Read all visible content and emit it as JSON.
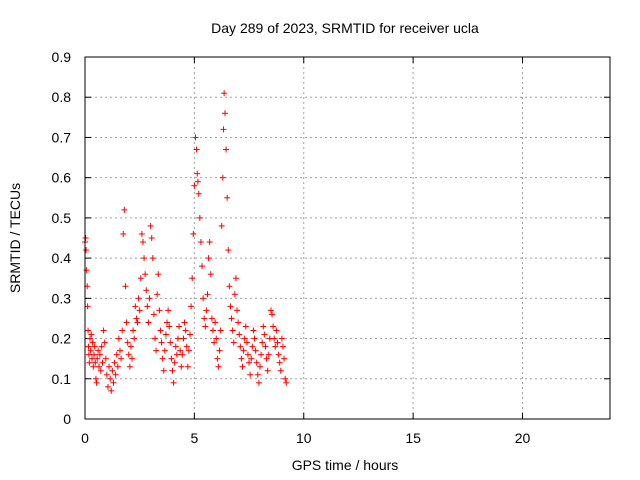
{
  "chart_data": {
    "type": "scatter",
    "title": "Day 289 of 2023, SRMTID for receiver ucla",
    "xlabel": "GPS time / hours",
    "ylabel": "SRMTID / TECUs",
    "xlim": [
      0,
      24
    ],
    "ylim": [
      0,
      0.9
    ],
    "xticks": [
      0,
      5,
      10,
      15,
      20
    ],
    "yticks": [
      0,
      0.1,
      0.2,
      0.3,
      0.4,
      0.5,
      0.6,
      0.7,
      0.8,
      0.9
    ],
    "xtick_labels": [
      "0",
      "5",
      "10",
      "15",
      "20"
    ],
    "ytick_labels": [
      "0",
      "0.1",
      "0.2",
      "0.3",
      "0.4",
      "0.5",
      "0.6",
      "0.7",
      "0.8",
      "0.9"
    ],
    "grid": true,
    "marker": "+",
    "color": "#ff0000",
    "series": [
      {
        "name": "SRMTID",
        "x": [
          0.0,
          0.03,
          0.05,
          0.07,
          0.1,
          0.12,
          0.14,
          0.16,
          0.18,
          0.2,
          0.23,
          0.26,
          0.29,
          0.32,
          0.35,
          0.38,
          0.41,
          0.44,
          0.47,
          0.5,
          0.53,
          0.56,
          0.6,
          0.64,
          0.68,
          0.72,
          0.76,
          0.8,
          0.85,
          0.9,
          0.95,
          1.0,
          1.05,
          1.1,
          1.15,
          1.2,
          1.25,
          1.3,
          1.35,
          1.4,
          1.45,
          1.5,
          1.55,
          1.6,
          1.65,
          1.7,
          1.75,
          1.8,
          1.85,
          1.9,
          1.95,
          2.0,
          2.05,
          2.1,
          2.15,
          2.2,
          2.25,
          2.3,
          2.35,
          2.4,
          2.45,
          2.5,
          2.55,
          2.6,
          2.65,
          2.7,
          2.75,
          2.8,
          2.85,
          2.9,
          2.95,
          3.0,
          3.05,
          3.1,
          3.15,
          3.2,
          3.25,
          3.3,
          3.35,
          3.4,
          3.45,
          3.5,
          3.55,
          3.6,
          3.65,
          3.7,
          3.75,
          3.8,
          3.85,
          3.9,
          3.95,
          4.0,
          4.05,
          4.1,
          4.15,
          4.2,
          4.25,
          4.3,
          4.35,
          4.4,
          4.45,
          4.5,
          4.55,
          4.6,
          4.65,
          4.7,
          4.75,
          4.8,
          4.85,
          4.9,
          4.95,
          5.0,
          5.05,
          5.1,
          5.13,
          5.16,
          5.2,
          5.25,
          5.3,
          5.35,
          5.4,
          5.45,
          5.5,
          5.55,
          5.6,
          5.65,
          5.7,
          5.75,
          5.8,
          5.85,
          5.9,
          5.95,
          6.0,
          6.05,
          6.1,
          6.15,
          6.2,
          6.25,
          6.3,
          6.33,
          6.36,
          6.4,
          6.45,
          6.5,
          6.55,
          6.6,
          6.65,
          6.7,
          6.75,
          6.8,
          6.85,
          6.9,
          6.95,
          7.0,
          7.05,
          7.1,
          7.15,
          7.2,
          7.25,
          7.3,
          7.35,
          7.4,
          7.45,
          7.5,
          7.55,
          7.6,
          7.65,
          7.7,
          7.75,
          7.8,
          7.85,
          7.9,
          7.95,
          8.0,
          8.05,
          8.1,
          8.15,
          8.2,
          8.25,
          8.3,
          8.35,
          8.4,
          8.45,
          8.5,
          8.55,
          8.6,
          8.65,
          8.7,
          8.75,
          8.8,
          8.85,
          8.9,
          8.95,
          9.0,
          9.05,
          9.1,
          9.15,
          9.2
        ],
        "y": [
          0.44,
          0.45,
          0.42,
          0.37,
          0.33,
          0.28,
          0.22,
          0.18,
          0.16,
          0.14,
          0.2,
          0.17,
          0.21,
          0.15,
          0.19,
          0.13,
          0.16,
          0.18,
          0.14,
          0.1,
          0.09,
          0.15,
          0.17,
          0.13,
          0.16,
          0.12,
          0.18,
          0.14,
          0.22,
          0.19,
          0.15,
          0.11,
          0.08,
          0.13,
          0.1,
          0.07,
          0.12,
          0.09,
          0.14,
          0.11,
          0.16,
          0.13,
          0.2,
          0.17,
          0.15,
          0.22,
          0.46,
          0.52,
          0.33,
          0.24,
          0.19,
          0.16,
          0.13,
          0.18,
          0.15,
          0.22,
          0.2,
          0.28,
          0.25,
          0.24,
          0.3,
          0.27,
          0.35,
          0.46,
          0.44,
          0.4,
          0.36,
          0.32,
          0.28,
          0.24,
          0.3,
          0.48,
          0.45,
          0.4,
          0.26,
          0.2,
          0.17,
          0.31,
          0.36,
          0.27,
          0.22,
          0.19,
          0.15,
          0.12,
          0.17,
          0.21,
          0.24,
          0.27,
          0.23,
          0.19,
          0.15,
          0.12,
          0.09,
          0.14,
          0.18,
          0.16,
          0.2,
          0.23,
          0.17,
          0.13,
          0.16,
          0.2,
          0.24,
          0.22,
          0.18,
          0.13,
          0.17,
          0.21,
          0.28,
          0.35,
          0.46,
          0.58,
          0.7,
          0.67,
          0.61,
          0.59,
          0.56,
          0.5,
          0.44,
          0.38,
          0.3,
          0.25,
          0.23,
          0.27,
          0.31,
          0.4,
          0.44,
          0.36,
          0.25,
          0.22,
          0.19,
          0.24,
          0.2,
          0.15,
          0.13,
          0.17,
          0.22,
          0.48,
          0.6,
          0.72,
          0.81,
          0.76,
          0.67,
          0.55,
          0.42,
          0.33,
          0.28,
          0.25,
          0.22,
          0.19,
          0.31,
          0.35,
          0.27,
          0.24,
          0.21,
          0.18,
          0.15,
          0.13,
          0.17,
          0.2,
          0.23,
          0.19,
          0.16,
          0.14,
          0.11,
          0.15,
          0.18,
          0.22,
          0.2,
          0.17,
          0.14,
          0.11,
          0.09,
          0.13,
          0.16,
          0.19,
          0.23,
          0.21,
          0.18,
          0.15,
          0.12,
          0.16,
          0.2,
          0.27,
          0.26,
          0.23,
          0.2,
          0.18,
          0.22,
          0.19,
          0.16,
          0.14,
          0.12,
          0.2,
          0.18,
          0.15,
          0.1,
          0.09
        ]
      }
    ]
  }
}
